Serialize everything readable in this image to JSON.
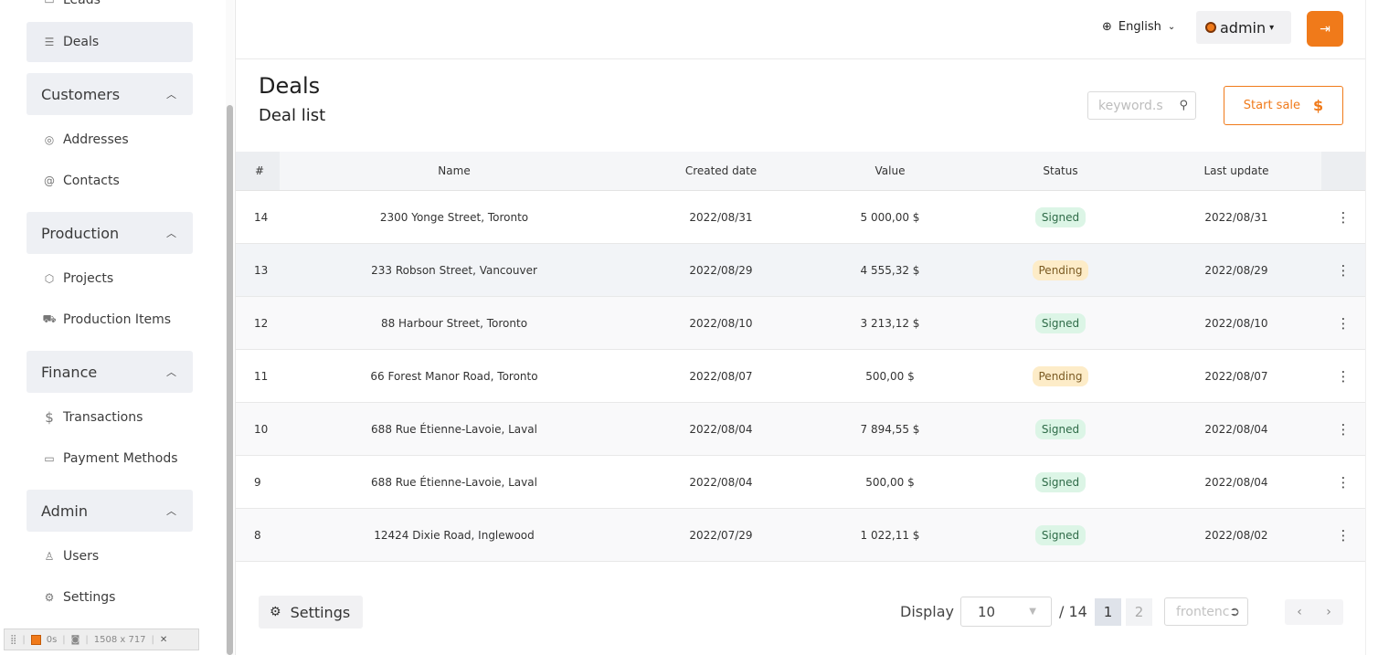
{
  "sidebar": {
    "items_top": [
      {
        "label": "Leads",
        "icon": "document-icon"
      },
      {
        "label": "Deals",
        "icon": "list-icon"
      }
    ],
    "groups": [
      {
        "label": "Customers",
        "items": [
          {
            "label": "Addresses",
            "icon": "location-icon"
          },
          {
            "label": "Contacts",
            "icon": "at-icon"
          }
        ]
      },
      {
        "label": "Production",
        "items": [
          {
            "label": "Projects",
            "icon": "box-icon"
          },
          {
            "label": "Production Items",
            "icon": "truck-icon"
          }
        ]
      },
      {
        "label": "Finance",
        "items": [
          {
            "label": "Transactions",
            "icon": "dollar-icon"
          },
          {
            "label": "Payment Methods",
            "icon": "card-icon"
          }
        ]
      },
      {
        "label": "Admin",
        "items": [
          {
            "label": "Users",
            "icon": "users-icon"
          },
          {
            "label": "Settings",
            "icon": "gear-icon"
          }
        ]
      }
    ]
  },
  "devbar": {
    "time": "0s",
    "size": "1508 x 717"
  },
  "topbar": {
    "language": "English",
    "user": "admin"
  },
  "header": {
    "title": "Deals",
    "subtitle": "Deal list",
    "search_placeholder": "keyword.s",
    "start_sale": "Start sale",
    "start_sale_icon": "$"
  },
  "table": {
    "columns": [
      "#",
      "Name",
      "Created date",
      "Value",
      "Status",
      "Last update"
    ],
    "rows": [
      {
        "id": "14",
        "name": "2300 Yonge Street, Toronto",
        "created": "2022/08/31",
        "value": "5 000,00 $",
        "status": "Signed",
        "updated": "2022/08/31"
      },
      {
        "id": "13",
        "name": "233 Robson Street, Vancouver",
        "created": "2022/08/29",
        "value": "4 555,32 $",
        "status": "Pending",
        "updated": "2022/08/29"
      },
      {
        "id": "12",
        "name": "88 Harbour Street, Toronto",
        "created": "2022/08/10",
        "value": "3 213,12 $",
        "status": "Signed",
        "updated": "2022/08/10"
      },
      {
        "id": "11",
        "name": "66 Forest Manor Road, Toronto",
        "created": "2022/08/07",
        "value": "500,00 $",
        "status": "Pending",
        "updated": "2022/08/07"
      },
      {
        "id": "10",
        "name": "688 Rue Étienne-Lavoie, Laval",
        "created": "2022/08/04",
        "value": "7 894,55 $",
        "status": "Signed",
        "updated": "2022/08/04"
      },
      {
        "id": "9",
        "name": "688 Rue Étienne-Lavoie, Laval",
        "created": "2022/08/04",
        "value": "500,00 $",
        "status": "Signed",
        "updated": "2022/08/04"
      },
      {
        "id": "8",
        "name": "12424 Dixie Road, Inglewood",
        "created": "2022/07/29",
        "value": "1 022,11 $",
        "status": "Signed",
        "updated": "2022/08/02"
      }
    ]
  },
  "footer": {
    "settings": "Settings",
    "display_label": "Display",
    "display_value": "10",
    "total": "/ 14",
    "pages": [
      "1",
      "2"
    ],
    "goto_placeholder": "frontenc"
  },
  "colors": {
    "accent": "#f07a1a",
    "signed_bg": "#dcf5e6",
    "pending_bg": "#fdecc8"
  }
}
